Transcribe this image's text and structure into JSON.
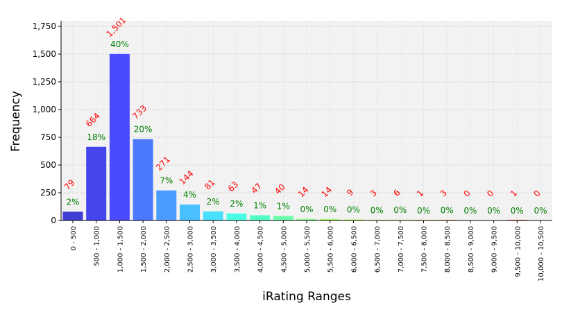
{
  "chart_data": {
    "type": "bar",
    "xlabel": "iRating Ranges",
    "ylabel": "Frequency",
    "ylim": [
      0,
      1800
    ],
    "yticks": [
      0,
      250,
      500,
      750,
      1000,
      1250,
      1500,
      1750
    ],
    "ytick_labels": [
      "0",
      "250",
      "500",
      "750",
      "1,000",
      "1,250",
      "1,500",
      "1,750"
    ],
    "grid": true,
    "categories": [
      "0 - 500",
      "500 - 1,000",
      "1,000 - 1,500",
      "1,500 - 2,000",
      "2,000 - 2,500",
      "2,500 - 3,000",
      "3,000 - 3,500",
      "3,500 - 4,000",
      "4,000 - 4,500",
      "4,500 - 5,000",
      "5,000 - 5,500",
      "5,500 - 6,000",
      "6,000 - 6,500",
      "6,500 - 7,000",
      "7,000 - 7,500",
      "7,500 - 8,000",
      "8,000 - 8,500",
      "8,500 - 9,000",
      "9,000 - 9,500",
      "9,500 - 10,000",
      "10,000 - 10,500"
    ],
    "values": [
      79,
      664,
      1501,
      733,
      271,
      144,
      81,
      63,
      47,
      40,
      14,
      14,
      9,
      3,
      6,
      1,
      3,
      0,
      0,
      1,
      0
    ],
    "count_labels": [
      "79",
      "664",
      "1,501",
      "733",
      "271",
      "144",
      "81",
      "63",
      "47",
      "40",
      "14",
      "14",
      "9",
      "3",
      "6",
      "1",
      "3",
      "0",
      "0",
      "1",
      "0"
    ],
    "percent_labels": [
      "2%",
      "18%",
      "40%",
      "20%",
      "7%",
      "4%",
      "2%",
      "2%",
      "1%",
      "1%",
      "0%",
      "0%",
      "0%",
      "0%",
      "0%",
      "0%",
      "0%",
      "0%",
      "0%",
      "0%",
      "0%"
    ],
    "colors": [
      "#3f3fd6",
      "#4545ee",
      "#4a4aff",
      "#4a78ff",
      "#4a9cff",
      "#4ac0ff",
      "#4ae0ff",
      "#4affe6",
      "#52ffc8",
      "#6effaa",
      "#8aff8c",
      "#a6ff70",
      "#c2ff54",
      "#dcff3e",
      "#f0f040",
      "#ffd040",
      "#ffa840",
      "#ff8040",
      "#ff5a40",
      "#ff3a30",
      "#e02020"
    ],
    "plot_background": "#f2f2f2",
    "count_label_color": "#ff0000",
    "percent_label_color": "#008000"
  }
}
